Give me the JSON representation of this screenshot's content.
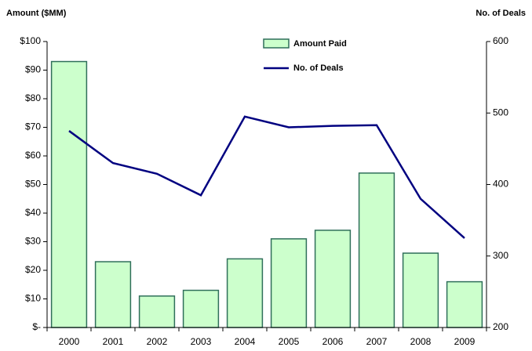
{
  "chart_data": {
    "type": "bar_line",
    "y_label": "Amount ($MM)",
    "y2_label": "No. of Deals",
    "categories": [
      "2000",
      "2001",
      "2002",
      "2003",
      "2004",
      "2005",
      "2006",
      "2007",
      "2008",
      "2009"
    ],
    "series": [
      {
        "name": "Amount Paid",
        "type": "bar",
        "color": "#ccffcc",
        "edge_color": "#2f6f5a",
        "values": [
          93,
          23,
          11,
          13,
          24,
          31,
          34,
          54,
          26,
          16
        ]
      },
      {
        "name": "No. of Deals",
        "type": "line",
        "axis": "y2",
        "color": "#000080",
        "values": [
          475,
          430,
          415,
          385,
          495,
          480,
          482,
          483,
          380,
          325
        ]
      }
    ],
    "ylim": [
      0,
      100
    ],
    "yticks": [
      {
        "value": 0,
        "label": "$-"
      },
      {
        "value": 10,
        "label": "$10"
      },
      {
        "value": 20,
        "label": "$20"
      },
      {
        "value": 30,
        "label": "$30"
      },
      {
        "value": 40,
        "label": "$40"
      },
      {
        "value": 50,
        "label": "$50"
      },
      {
        "value": 60,
        "label": "$60"
      },
      {
        "value": 70,
        "label": "$70"
      },
      {
        "value": 80,
        "label": "$80"
      },
      {
        "value": 90,
        "label": "$90"
      },
      {
        "value": 100,
        "label": "$100"
      }
    ],
    "y2lim": [
      200,
      600
    ],
    "y2ticks": [
      200,
      300,
      400,
      500,
      600
    ],
    "grid": false
  }
}
